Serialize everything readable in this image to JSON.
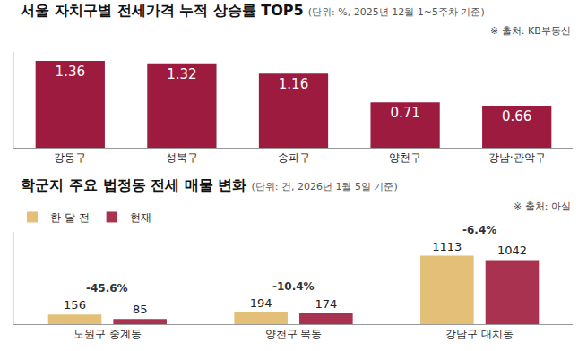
{
  "chart_data": [
    {
      "type": "bar",
      "title": "서울 자치구별 전세가격 누적 상승률 TOP5",
      "subtitle": "(단위: %, 2025년 12월 1~5주차 기준)",
      "source": "※ 출처: KB부동산",
      "categories": [
        "강동구",
        "성북구",
        "송파구",
        "양천구",
        "강남·관악구"
      ],
      "values": [
        1.36,
        1.32,
        1.16,
        0.71,
        0.66
      ],
      "color": "#9e1b40",
      "ylim": [
        0,
        1.5
      ],
      "data_labels": true,
      "tick_labels": "x"
    },
    {
      "type": "bar",
      "title": "학군지 주요 법정동 전세 매물 변화",
      "subtitle": "(단위: 건, 2026년 1월 5일 기준)",
      "source": "※ 출처: 아실",
      "categories": [
        "노원구 중계동",
        "양천구 목동",
        "강남구 대치동"
      ],
      "series": [
        {
          "name": "한 달 전",
          "color": "#e3bf78",
          "values": [
            156,
            194,
            1113
          ]
        },
        {
          "name": "현재",
          "color": "#a8324f",
          "values": [
            85,
            174,
            1042
          ]
        }
      ],
      "annotations": [
        {
          "category": "노원구 중계동",
          "text": "-45.6%"
        },
        {
          "category": "양천구 목동",
          "text": "-10.4%"
        },
        {
          "category": "강남구 대치동",
          "text": "-6.4%"
        }
      ],
      "ylim": [
        0,
        1500
      ],
      "legend": "top left",
      "data_labels": true,
      "tick_labels": "x"
    }
  ]
}
